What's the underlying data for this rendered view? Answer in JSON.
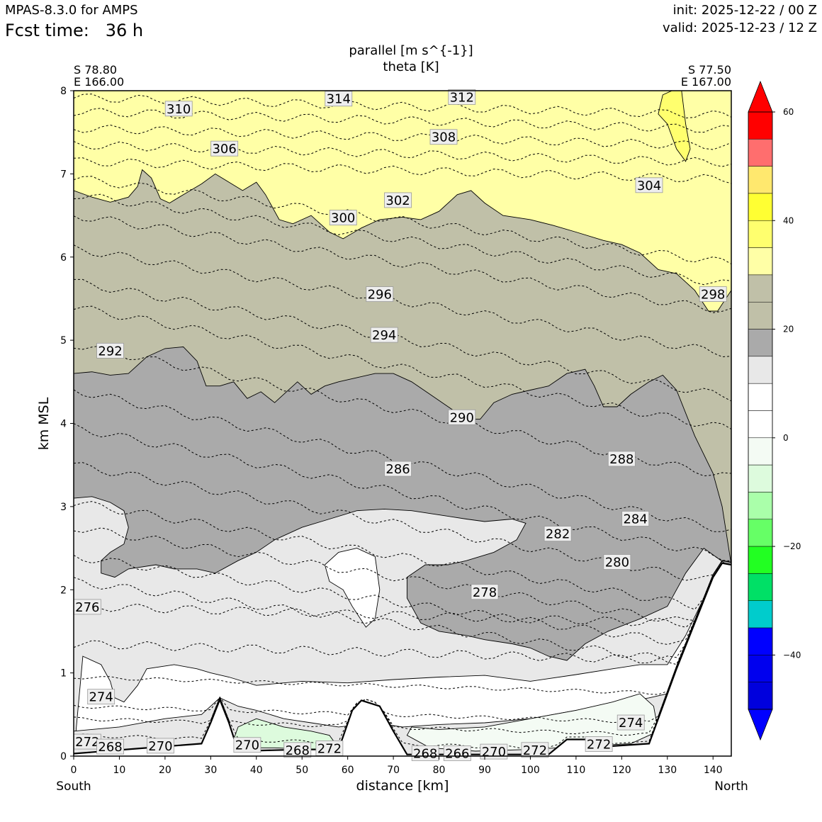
{
  "header": {
    "model": "MPAS-8.3.0 for AMPS",
    "fcst_label": "Fcst time:",
    "fcst_value": "36 h",
    "init": "init: 2025-12-22 / 00 Z",
    "valid": "valid: 2025-12-23 / 12 Z"
  },
  "chart_data": {
    "type": "cross-section contour",
    "title_line1": "parallel [m s^{-1}]",
    "title_line2": "theta [K]",
    "start_point": {
      "lat": "S 78.80",
      "lon": "E 166.00"
    },
    "end_point": {
      "lat": "S 77.50",
      "lon": "E 167.00"
    },
    "xlabel": "distance [km]",
    "ylabel": "km MSL",
    "x_left_label": "South",
    "x_right_label": "North",
    "xlim": [
      0,
      144
    ],
    "ylim": [
      0,
      8
    ],
    "xticks": [
      "0",
      "10",
      "20",
      "30",
      "40",
      "50",
      "60",
      "70",
      "80",
      "90",
      "100",
      "110",
      "120",
      "130",
      "140"
    ],
    "yticks": [
      "0",
      "1",
      "2",
      "3",
      "4",
      "5",
      "6",
      "7",
      "8"
    ],
    "colorbar": {
      "ticks": [
        "60",
        "40",
        "20",
        "0",
        "−20",
        "−40"
      ],
      "tick_values": [
        60,
        40,
        20,
        0,
        -20,
        -40
      ],
      "range": [
        -50,
        60
      ],
      "levels": [
        {
          "from": 55,
          "to": 60,
          "color": "#ff0000"
        },
        {
          "from": 50,
          "to": 55,
          "color": "#ff6e6e"
        },
        {
          "from": 45,
          "to": 50,
          "color": "#ffe86e"
        },
        {
          "from": 40,
          "to": 45,
          "color": "#ffff33"
        },
        {
          "from": 35,
          "to": 40,
          "color": "#ffff6e"
        },
        {
          "from": 30,
          "to": 35,
          "color": "#ffffa6"
        },
        {
          "from": 25,
          "to": 30,
          "color": "#c0c0a8"
        },
        {
          "from": 20,
          "to": 25,
          "color": "#c0c0a8"
        },
        {
          "from": 15,
          "to": 20,
          "color": "#aaaaaa"
        },
        {
          "from": 10,
          "to": 15,
          "color": "#e8e8e8"
        },
        {
          "from": 5,
          "to": 10,
          "color": "#ffffff"
        },
        {
          "from": 0,
          "to": 5,
          "color": "#ffffff"
        },
        {
          "from": -5,
          "to": 0,
          "color": "#f4fbf4"
        },
        {
          "from": -10,
          "to": -5,
          "color": "#ddfbdd"
        },
        {
          "from": -15,
          "to": -10,
          "color": "#aaffaa"
        },
        {
          "from": -20,
          "to": -15,
          "color": "#66ff66"
        },
        {
          "from": -25,
          "to": -20,
          "color": "#22ff22"
        },
        {
          "from": -30,
          "to": -25,
          "color": "#00e066"
        },
        {
          "from": -35,
          "to": -30,
          "color": "#00cccc"
        },
        {
          "from": -40,
          "to": -35,
          "color": "#0000ff"
        },
        {
          "from": -45,
          "to": -40,
          "color": "#0000ee"
        },
        {
          "from": -50,
          "to": -45,
          "color": "#0000dd"
        }
      ],
      "extend_top_color": "#ff0000",
      "extend_bottom_color": "#0000ff"
    },
    "fill_colors": {
      "yellow_light": "#ffffa6",
      "yellow": "#ffff6e",
      "olive": "#c0c0a8",
      "gray": "#aaaaaa",
      "light_gray": "#e8e8e8",
      "white": "#ffffff",
      "pale_green": "#f4fbf4",
      "light_green": "#ddfbdd"
    },
    "theta_labels": [
      {
        "text": "314",
        "x": 58,
        "y": 7.9
      },
      {
        "text": "312",
        "x": 85,
        "y": 7.92
      },
      {
        "text": "310",
        "x": 23,
        "y": 7.78
      },
      {
        "text": "308",
        "x": 81,
        "y": 7.44
      },
      {
        "text": "306",
        "x": 33,
        "y": 7.3
      },
      {
        "text": "304",
        "x": 126,
        "y": 6.86
      },
      {
        "text": "302",
        "x": 71,
        "y": 6.68
      },
      {
        "text": "300",
        "x": 59,
        "y": 6.47
      },
      {
        "text": "298",
        "x": 140,
        "y": 5.55
      },
      {
        "text": "296",
        "x": 67,
        "y": 5.55
      },
      {
        "text": "294",
        "x": 68,
        "y": 5.06
      },
      {
        "text": "292",
        "x": 8,
        "y": 4.87
      },
      {
        "text": "290",
        "x": 85,
        "y": 4.07
      },
      {
        "text": "288",
        "x": 120,
        "y": 3.57
      },
      {
        "text": "286",
        "x": 71,
        "y": 3.45
      },
      {
        "text": "284",
        "x": 123,
        "y": 2.85
      },
      {
        "text": "282",
        "x": 106,
        "y": 2.67
      },
      {
        "text": "280",
        "x": 119,
        "y": 2.33
      },
      {
        "text": "278",
        "x": 90,
        "y": 1.97
      },
      {
        "text": "276",
        "x": 3,
        "y": 1.79
      },
      {
        "text": "274",
        "x": 6,
        "y": 0.71
      },
      {
        "text": "274",
        "x": 122,
        "y": 0.4
      },
      {
        "text": "272",
        "x": 3,
        "y": 0.17
      },
      {
        "text": "268",
        "x": 8,
        "y": 0.11
      },
      {
        "text": "270",
        "x": 19,
        "y": 0.12
      },
      {
        "text": "270",
        "x": 38,
        "y": 0.13
      },
      {
        "text": "268",
        "x": 49,
        "y": 0.07
      },
      {
        "text": "272",
        "x": 56,
        "y": 0.09
      },
      {
        "text": "268",
        "x": 77,
        "y": 0.03
      },
      {
        "text": "266",
        "x": 84,
        "y": 0.03
      },
      {
        "text": "270",
        "x": 92,
        "y": 0.05
      },
      {
        "text": "272",
        "x": 101,
        "y": 0.07
      },
      {
        "text": "272",
        "x": 115,
        "y": 0.14
      }
    ],
    "terrain": [
      [
        0,
        0.03
      ],
      [
        14,
        0.09
      ],
      [
        28,
        0.15
      ],
      [
        30,
        0.4
      ],
      [
        32,
        0.68
      ],
      [
        34,
        0.4
      ],
      [
        36,
        0.06
      ],
      [
        50,
        0.08
      ],
      [
        58,
        0.08
      ],
      [
        61,
        0.55
      ],
      [
        63,
        0.67
      ],
      [
        67,
        0.6
      ],
      [
        70,
        0.3
      ],
      [
        73,
        0.02
      ],
      [
        104,
        0.02
      ],
      [
        108,
        0.2
      ],
      [
        112,
        0.2
      ],
      [
        118,
        0.12
      ],
      [
        126,
        0.15
      ],
      [
        132,
        1.05
      ],
      [
        136,
        1.6
      ],
      [
        140,
        2.15
      ],
      [
        142,
        2.32
      ],
      [
        144,
        2.3
      ]
    ]
  }
}
